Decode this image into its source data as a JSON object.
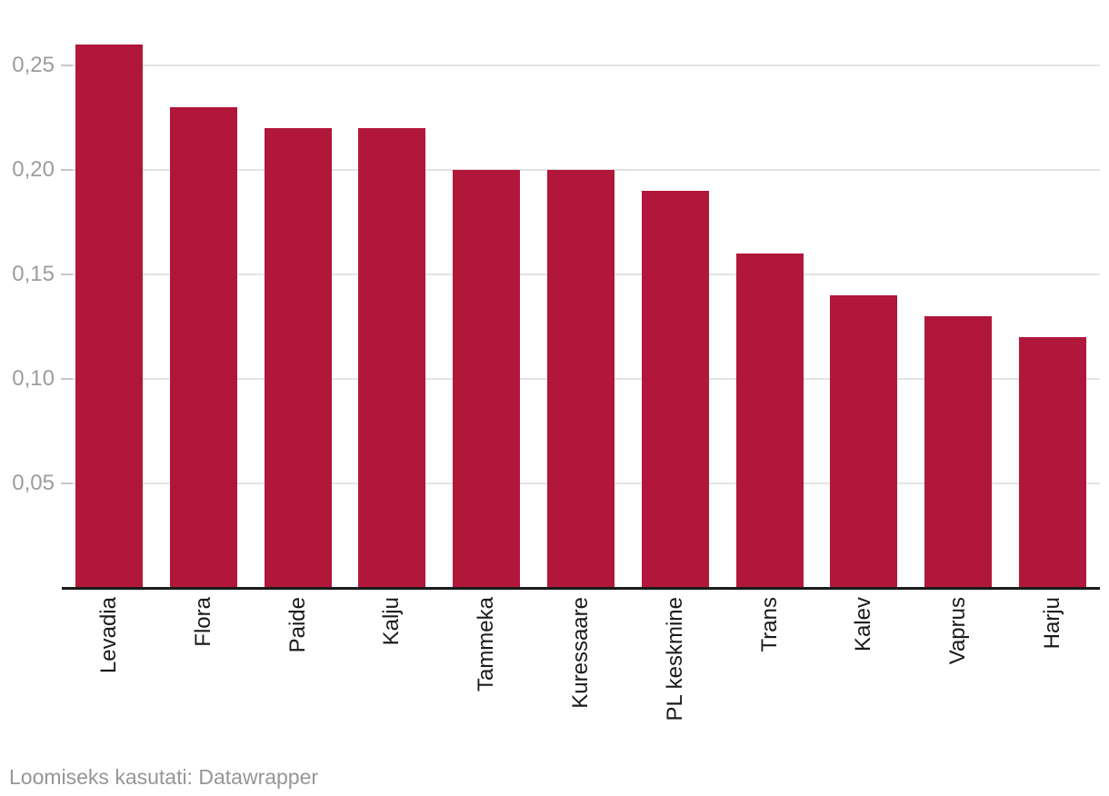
{
  "chart_data": {
    "type": "bar",
    "categories": [
      "Levadia",
      "Flora",
      "Paide",
      "Kalju",
      "Tammeka",
      "Kuressaare",
      "PL keskmine",
      "Trans",
      "Kalev",
      "Vaprus",
      "Harju"
    ],
    "values": [
      0.26,
      0.23,
      0.22,
      0.22,
      0.2,
      0.2,
      0.19,
      0.16,
      0.14,
      0.13,
      0.12
    ],
    "title": "",
    "xlabel": "",
    "ylabel": "",
    "ylim": [
      0,
      0.281
    ],
    "yticks": [
      0.05,
      0.1,
      0.15,
      0.2,
      0.25
    ],
    "ytick_labels": [
      "0,05",
      "0,10",
      "0,15",
      "0,20",
      "0,25"
    ],
    "grid": true,
    "legend": "none",
    "decimal_separator": ",",
    "x_label_rotation_deg": -90
  },
  "colors": {
    "bar": "#b1173a",
    "gridline": "#e4e4e4",
    "tick": "#c6c6c6",
    "axis_line": "#1a1a1a",
    "y_label": "#9c9c9c",
    "x_label": "#1a1a1a",
    "footer_text": "#969696",
    "background": "#ffffff"
  },
  "footer": {
    "prefix": "Loomiseks kasutati: ",
    "link_label": "Datawrapper"
  }
}
